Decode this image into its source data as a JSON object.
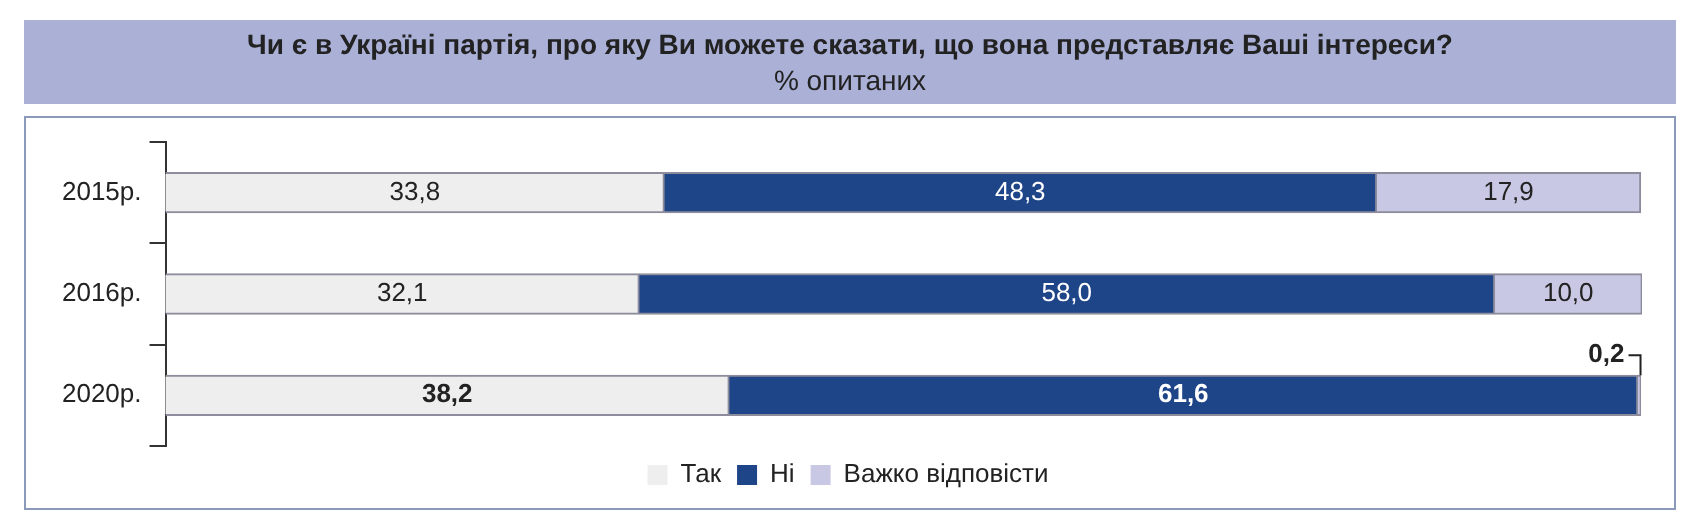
{
  "chart_data": {
    "type": "bar",
    "orientation": "horizontal",
    "stacked": true,
    "title": "Чи є в Україні партія, про яку Ви можете сказати, що вона представляє Ваші інтереси?",
    "subtitle": "% опитаних",
    "categories": [
      "2015р.",
      "2016р.",
      "2020р."
    ],
    "series": [
      {
        "name": "Так",
        "color": "#eeeeee",
        "values": [
          33.8,
          32.1,
          38.2
        ],
        "value_labels": [
          "33,8",
          "32,1",
          "38,2"
        ]
      },
      {
        "name": "Ні",
        "color": "#1f4589",
        "values": [
          48.3,
          58.0,
          61.6
        ],
        "value_labels": [
          "48,3",
          "58,0",
          "61,6"
        ]
      },
      {
        "name": "Важко відповісти",
        "color": "#c8c8e4",
        "values": [
          17.9,
          10.0,
          0.2
        ],
        "value_labels": [
          "17,9",
          "10,0",
          "0,2"
        ]
      }
    ],
    "legend": "bottom",
    "tick_labels": "y"
  }
}
